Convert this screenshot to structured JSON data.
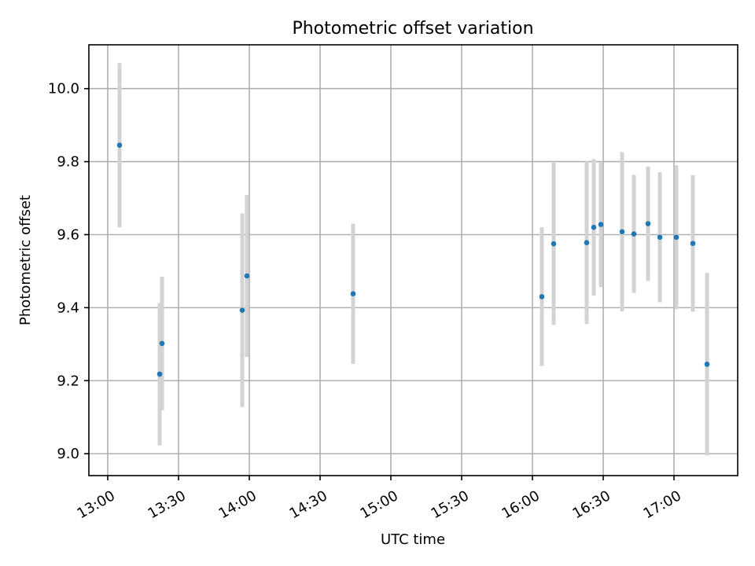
{
  "chart_data": {
    "type": "scatter",
    "title": "Photometric offset variation",
    "xlabel": "UTC time",
    "ylabel": "Photometric offset",
    "xlim": [
      "12:52",
      "17:27"
    ],
    "ylim": [
      8.94,
      10.12
    ],
    "x_ticks": [
      "13:00",
      "13:30",
      "14:00",
      "14:30",
      "15:00",
      "15:30",
      "16:00",
      "16:30",
      "17:00"
    ],
    "y_ticks": [
      9.0,
      9.2,
      9.4,
      9.6,
      9.8,
      10.0
    ],
    "y_tick_labels": [
      "9.0",
      "9.2",
      "9.4",
      "9.6",
      "9.8",
      "10.0"
    ],
    "grid": true,
    "marker_color": "#1f77b4",
    "errorbar_color": "#d3d3d3",
    "points": [
      {
        "x": "13:05",
        "y": 9.845,
        "err": 0.225
      },
      {
        "x": "13:22",
        "y": 9.218,
        "err": 0.195
      },
      {
        "x": "13:23",
        "y": 9.302,
        "err": 0.183
      },
      {
        "x": "13:57",
        "y": 9.393,
        "err": 0.265
      },
      {
        "x": "13:59",
        "y": 9.487,
        "err": 0.222
      },
      {
        "x": "14:44",
        "y": 9.438,
        "err": 0.192
      },
      {
        "x": "16:04",
        "y": 9.43,
        "err": 0.19
      },
      {
        "x": "16:09",
        "y": 9.575,
        "err": 0.222
      },
      {
        "x": "16:23",
        "y": 9.578,
        "err": 0.223
      },
      {
        "x": "16:26",
        "y": 9.62,
        "err": 0.187
      },
      {
        "x": "16:29",
        "y": 9.628,
        "err": 0.172
      },
      {
        "x": "16:38",
        "y": 9.608,
        "err": 0.218
      },
      {
        "x": "16:43",
        "y": 9.602,
        "err": 0.162
      },
      {
        "x": "16:49",
        "y": 9.63,
        "err": 0.157
      },
      {
        "x": "16:54",
        "y": 9.593,
        "err": 0.178
      },
      {
        "x": "17:01",
        "y": 9.593,
        "err": 0.197
      },
      {
        "x": "17:08",
        "y": 9.576,
        "err": 0.187
      },
      {
        "x": "17:14",
        "y": 9.245,
        "err": 0.25
      }
    ]
  }
}
